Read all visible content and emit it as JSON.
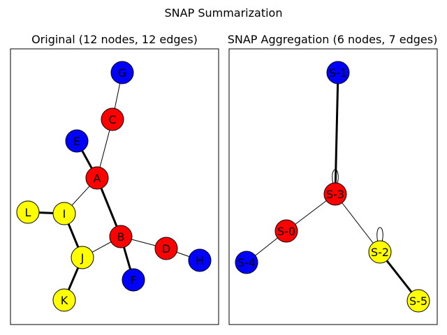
{
  "figure": {
    "title": "SNAP Summarization"
  },
  "panels": [
    {
      "id": "original",
      "title": "Original (12 nodes, 12 edges)",
      "nodes": [
        {
          "id": "A",
          "label": "A",
          "color": "#ff0000"
        },
        {
          "id": "B",
          "label": "B",
          "color": "#ff0000"
        },
        {
          "id": "C",
          "label": "C",
          "color": "#ff0000"
        },
        {
          "id": "D",
          "label": "D",
          "color": "#ff0000"
        },
        {
          "id": "E",
          "label": "E",
          "color": "#0000ff"
        },
        {
          "id": "F",
          "label": "F",
          "color": "#0000ff"
        },
        {
          "id": "G",
          "label": "G",
          "color": "#0000ff"
        },
        {
          "id": "H",
          "label": "H",
          "color": "#0000ff"
        },
        {
          "id": "I",
          "label": "I",
          "color": "#ffff00"
        },
        {
          "id": "J",
          "label": "J",
          "color": "#ffff00"
        },
        {
          "id": "K",
          "label": "K",
          "color": "#ffff00"
        },
        {
          "id": "L",
          "label": "L",
          "color": "#ffff00"
        }
      ],
      "edges": [
        {
          "source": "G",
          "target": "C",
          "weight": 1
        },
        {
          "source": "C",
          "target": "A",
          "weight": 1
        },
        {
          "source": "E",
          "target": "A",
          "weight": 3
        },
        {
          "source": "A",
          "target": "I",
          "weight": 1
        },
        {
          "source": "A",
          "target": "B",
          "weight": 3
        },
        {
          "source": "L",
          "target": "I",
          "weight": 3
        },
        {
          "source": "I",
          "target": "J",
          "weight": 3
        },
        {
          "source": "J",
          "target": "B",
          "weight": 1
        },
        {
          "source": "J",
          "target": "K",
          "weight": 3
        },
        {
          "source": "B",
          "target": "D",
          "weight": 1
        },
        {
          "source": "B",
          "target": "F",
          "weight": 3
        },
        {
          "source": "D",
          "target": "H",
          "weight": 1
        }
      ]
    },
    {
      "id": "aggregation",
      "title": "SNAP Aggregation (6 nodes, 7 edges)",
      "nodes": [
        {
          "id": "S-1",
          "label": "S-1",
          "color": "#0000ff"
        },
        {
          "id": "S-3",
          "label": "S-3",
          "color": "#ff0000"
        },
        {
          "id": "S-0",
          "label": "S-0",
          "color": "#ff0000"
        },
        {
          "id": "S-2",
          "label": "S-2",
          "color": "#ffff00"
        },
        {
          "id": "S-4",
          "label": "S-4",
          "color": "#0000ff"
        },
        {
          "id": "S-5",
          "label": "S-5",
          "color": "#ffff00"
        }
      ],
      "edges": [
        {
          "source": "S-1",
          "target": "S-3",
          "weight": 3
        },
        {
          "source": "S-3",
          "target": "S-3",
          "weight": 1
        },
        {
          "source": "S-3",
          "target": "S-0",
          "weight": 1
        },
        {
          "source": "S-3",
          "target": "S-2",
          "weight": 1
        },
        {
          "source": "S-2",
          "target": "S-2",
          "weight": 1
        },
        {
          "source": "S-0",
          "target": "S-4",
          "weight": 1
        },
        {
          "source": "S-2",
          "target": "S-5",
          "weight": 3
        }
      ]
    }
  ]
}
